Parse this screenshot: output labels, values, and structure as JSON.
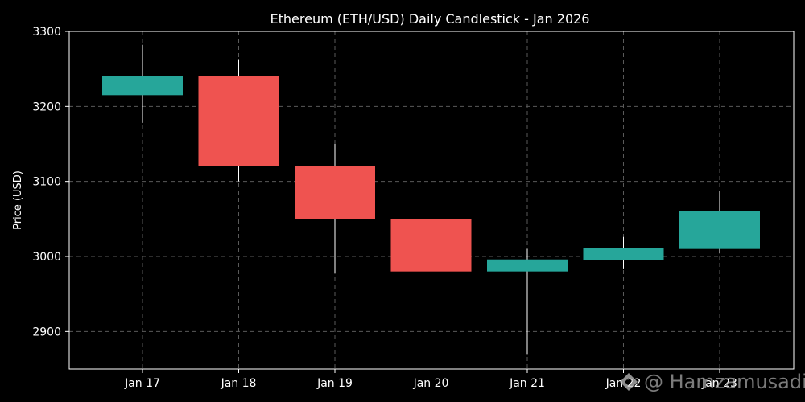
{
  "colors": {
    "background": "#000000",
    "up": "#26a69a",
    "down": "#ef5350",
    "wick": "#ffffff",
    "grid": "#5a5a5a",
    "text": "#ffffff"
  },
  "watermark": {
    "icon": "binance-logo-icon",
    "text": "@ Hamzamusadi"
  },
  "chart_data": {
    "type": "candlestick",
    "title": "Ethereum (ETH/USD) Daily Candlestick - Jan 2026",
    "xlabel": "",
    "ylabel": "Price (USD)",
    "ylim": [
      2850,
      3300
    ],
    "yticks": [
      2900,
      3000,
      3100,
      3200,
      3300
    ],
    "grid": true,
    "categories": [
      "Jan 17",
      "Jan 18",
      "Jan 19",
      "Jan 20",
      "Jan 21",
      "Jan 22",
      "Jan 23"
    ],
    "candles": [
      {
        "date": "Jan 17",
        "open": 3215,
        "high": 3282,
        "low": 3178,
        "close": 3240
      },
      {
        "date": "Jan 18",
        "open": 3240,
        "high": 3262,
        "low": 3100,
        "close": 3120
      },
      {
        "date": "Jan 19",
        "open": 3120,
        "high": 3150,
        "low": 2978,
        "close": 3050
      },
      {
        "date": "Jan 20",
        "open": 3050,
        "high": 3080,
        "low": 2950,
        "close": 2980
      },
      {
        "date": "Jan 21",
        "open": 2980,
        "high": 3010,
        "low": 2870,
        "close": 2996
      },
      {
        "date": "Jan 22",
        "open": 2995,
        "high": 3026,
        "low": 2984,
        "close": 3011
      },
      {
        "date": "Jan 23",
        "open": 3010,
        "high": 3087,
        "low": 3004,
        "close": 3060
      }
    ]
  }
}
